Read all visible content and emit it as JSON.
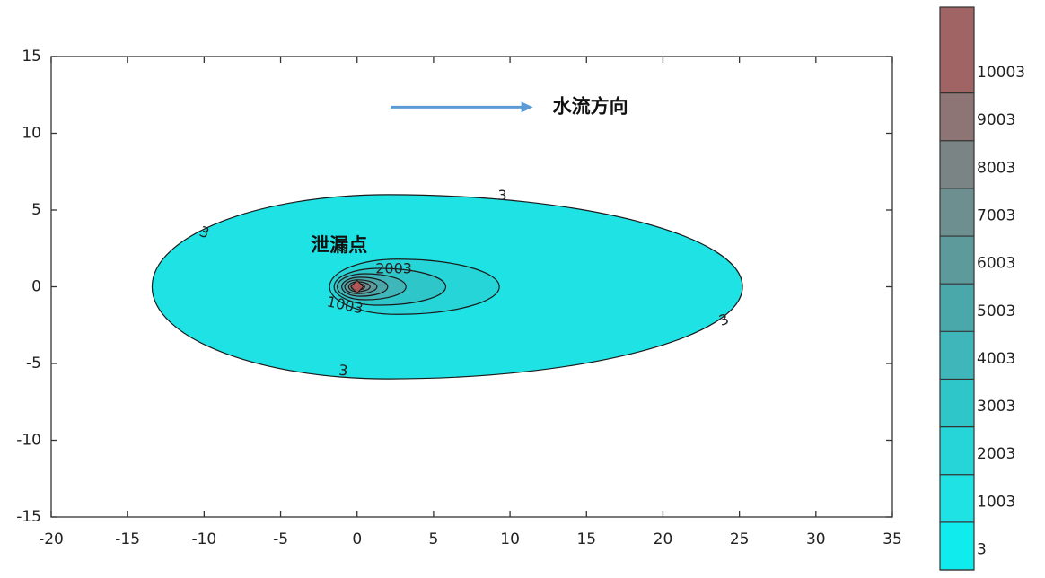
{
  "chart_data": {
    "type": "contour",
    "title": "",
    "xlabel": "",
    "ylabel": "",
    "xlim": [
      -20,
      35
    ],
    "ylim": [
      -15,
      15
    ],
    "x_ticks": [
      "-20",
      "-15",
      "-10",
      "-5",
      "0",
      "5",
      "10",
      "15",
      "20",
      "25",
      "30",
      "35"
    ],
    "y_ticks": [
      "15",
      "10",
      "5",
      "0",
      "-5",
      "-10",
      "-15"
    ],
    "source": {
      "x": 0,
      "y": 0,
      "label": "泄漏点"
    },
    "flow": {
      "label": "水流方向",
      "x_start": 2.2,
      "x_end": 11.5,
      "y": 11.7
    },
    "contours": [
      {
        "level": 3,
        "label": "3",
        "x_min": -13.4,
        "x_max": 25.2,
        "y_half": 6.0,
        "y_center": 0
      },
      {
        "level": 2003,
        "label": "2003",
        "x_min": -1.8,
        "x_max": 9.3,
        "y_half": 1.8,
        "y_center": 0
      },
      {
        "level": 3003,
        "label": "",
        "x_min": -1.5,
        "x_max": 5.8,
        "y_half": 1.2,
        "y_center": 0
      },
      {
        "level": 4003,
        "label": "",
        "x_min": -1.3,
        "x_max": 3.2,
        "y_half": 0.85,
        "y_center": 0
      },
      {
        "level": 5003,
        "label": "",
        "x_min": -1.0,
        "x_max": 2.0,
        "y_half": 0.62,
        "y_center": 0
      },
      {
        "level": 6003,
        "label": "",
        "x_min": -0.8,
        "x_max": 1.3,
        "y_half": 0.45,
        "y_center": 0
      },
      {
        "level": 7003,
        "label": "",
        "x_min": -0.55,
        "x_max": 0.85,
        "y_half": 0.32,
        "y_center": 0
      },
      {
        "level": 8003,
        "label": "",
        "x_min": -0.38,
        "x_max": 0.5,
        "y_half": 0.22,
        "y_center": 0
      },
      {
        "level": 9003,
        "label": "",
        "x_min": -0.24,
        "x_max": 0.3,
        "y_half": 0.14,
        "y_center": 0
      },
      {
        "level": 10003,
        "label": "",
        "x_min": -0.12,
        "x_max": 0.14,
        "y_half": 0.07,
        "y_center": 0
      }
    ],
    "contour_label_1003": "1003",
    "colorbar": {
      "levels": [
        "3",
        "1003",
        "2003",
        "3003",
        "4003",
        "5003",
        "6003",
        "7003",
        "8003",
        "9003",
        "10003"
      ],
      "colors": [
        "#10ecee",
        "#1ee2e4",
        "#26d5d8",
        "#2fc6c9",
        "#3fb6b9",
        "#4aa7aa",
        "#5c9a9c",
        "#6d8f90",
        "#7b8484",
        "#8e7575",
        "#a06464",
        "#b05555"
      ]
    }
  }
}
